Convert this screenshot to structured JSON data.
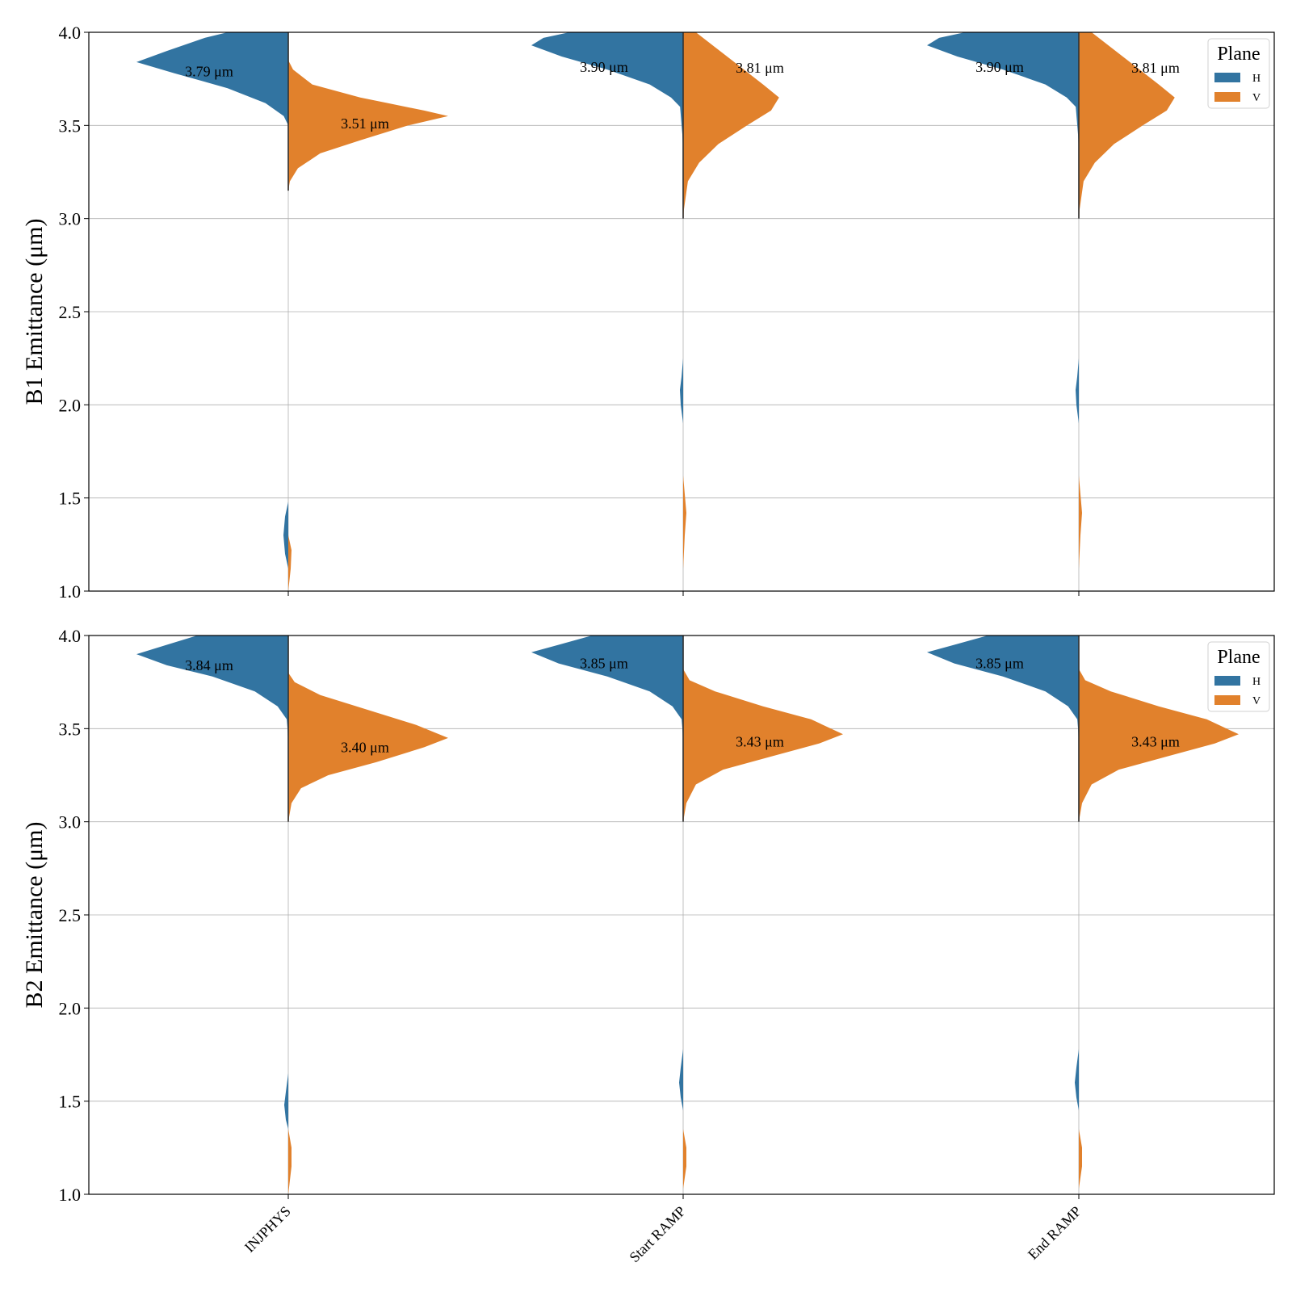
{
  "chart_data": [
    {
      "type": "violin",
      "panel": "top",
      "ylabel": "B1 Emittance (μm)",
      "ylim": [
        1.0,
        4.0
      ],
      "yticks": [
        "1.0",
        "1.5",
        "2.0",
        "2.5",
        "3.0",
        "3.5",
        "4.0"
      ],
      "grid": true,
      "split": true,
      "categories": [
        "INJPHYS",
        "Start RAMP",
        "End RAMP"
      ],
      "legend": {
        "title": "Plane",
        "position": "top-right",
        "entries": [
          {
            "name": "H",
            "color": "#3274a1"
          },
          {
            "name": "V",
            "color": "#e1812c"
          }
        ]
      },
      "series": [
        {
          "name": "H",
          "color": "#3274a1",
          "median_labels": [
            "3.79 μm",
            "3.90 μm",
            "3.90 μm"
          ],
          "median": [
            3.79,
            3.9,
            3.9
          ],
          "density_profile": [
            [
              [
                4.0,
                0.4
              ],
              [
                3.97,
                0.55
              ],
              [
                3.9,
                0.8
              ],
              [
                3.84,
                1.0
              ],
              [
                3.78,
                0.75
              ],
              [
                3.7,
                0.4
              ],
              [
                3.62,
                0.15
              ],
              [
                3.55,
                0.03
              ],
              [
                3.5,
                0.0
              ]
            ],
            [
              [
                4.0,
                0.75
              ],
              [
                3.97,
                0.92
              ],
              [
                3.93,
                1.0
              ],
              [
                3.87,
                0.8
              ],
              [
                3.8,
                0.5
              ],
              [
                3.72,
                0.22
              ],
              [
                3.65,
                0.08
              ],
              [
                3.6,
                0.02
              ],
              [
                3.4,
                0.0
              ]
            ],
            [
              [
                4.0,
                0.75
              ],
              [
                3.97,
                0.92
              ],
              [
                3.93,
                1.0
              ],
              [
                3.87,
                0.8
              ],
              [
                3.8,
                0.5
              ],
              [
                3.72,
                0.22
              ],
              [
                3.65,
                0.08
              ],
              [
                3.6,
                0.02
              ],
              [
                3.4,
                0.0
              ]
            ]
          ],
          "outlier_lobe": [
            [
              [
                1.48,
                0.0
              ],
              [
                1.4,
                0.004
              ],
              [
                1.3,
                0.006
              ],
              [
                1.2,
                0.004
              ],
              [
                1.12,
                0.0
              ]
            ],
            [
              [
                2.25,
                0.0
              ],
              [
                2.15,
                0.002
              ],
              [
                2.08,
                0.004
              ],
              [
                2.0,
                0.003
              ],
              [
                1.9,
                0.0
              ]
            ],
            [
              [
                2.25,
                0.0
              ],
              [
                2.15,
                0.002
              ],
              [
                2.08,
                0.004
              ],
              [
                2.0,
                0.003
              ],
              [
                1.9,
                0.0
              ]
            ]
          ]
        },
        {
          "name": "V",
          "color": "#e1812c",
          "median_labels": [
            "3.51 μm",
            "3.81 μm",
            "3.81 μm"
          ],
          "median": [
            3.51,
            3.81,
            3.81
          ],
          "density_profile": [
            [
              [
                3.85,
                0.0
              ],
              [
                3.8,
                0.03
              ],
              [
                3.72,
                0.15
              ],
              [
                3.65,
                0.45
              ],
              [
                3.58,
                0.85
              ],
              [
                3.55,
                1.0
              ],
              [
                3.5,
                0.75
              ],
              [
                3.42,
                0.45
              ],
              [
                3.35,
                0.2
              ],
              [
                3.27,
                0.06
              ],
              [
                3.2,
                0.01
              ],
              [
                3.15,
                0.0
              ]
            ],
            [
              [
                4.0,
                0.08
              ],
              [
                3.92,
                0.2
              ],
              [
                3.82,
                0.35
              ],
              [
                3.72,
                0.5
              ],
              [
                3.65,
                0.6
              ],
              [
                3.58,
                0.55
              ],
              [
                3.5,
                0.4
              ],
              [
                3.4,
                0.22
              ],
              [
                3.3,
                0.1
              ],
              [
                3.2,
                0.03
              ],
              [
                3.05,
                0.005
              ],
              [
                3.0,
                0.0
              ]
            ],
            [
              [
                4.0,
                0.08
              ],
              [
                3.92,
                0.2
              ],
              [
                3.82,
                0.35
              ],
              [
                3.72,
                0.5
              ],
              [
                3.65,
                0.6
              ],
              [
                3.58,
                0.55
              ],
              [
                3.5,
                0.4
              ],
              [
                3.4,
                0.22
              ],
              [
                3.3,
                0.1
              ],
              [
                3.2,
                0.03
              ],
              [
                3.05,
                0.005
              ],
              [
                3.0,
                0.0
              ]
            ]
          ],
          "outlier_lobe": [
            [
              [
                1.3,
                0.0
              ],
              [
                1.22,
                0.004
              ],
              [
                1.12,
                0.003
              ],
              [
                1.0,
                0.0
              ]
            ],
            [
              [
                1.62,
                0.0
              ],
              [
                1.52,
                0.002
              ],
              [
                1.42,
                0.004
              ],
              [
                1.3,
                0.002
              ],
              [
                1.12,
                0.0
              ]
            ],
            [
              [
                1.62,
                0.0
              ],
              [
                1.52,
                0.002
              ],
              [
                1.42,
                0.004
              ],
              [
                1.3,
                0.002
              ],
              [
                1.12,
                0.0
              ]
            ]
          ]
        }
      ]
    },
    {
      "type": "violin",
      "panel": "bottom",
      "ylabel": "B2 Emittance (μm)",
      "ylim": [
        1.0,
        4.0
      ],
      "yticks": [
        "1.0",
        "1.5",
        "2.0",
        "2.5",
        "3.0",
        "3.5",
        "4.0"
      ],
      "grid": true,
      "split": true,
      "categories": [
        "INJPHYS",
        "Start RAMP",
        "End RAMP"
      ],
      "legend": {
        "title": "Plane",
        "position": "top-right",
        "entries": [
          {
            "name": "H",
            "color": "#3274a1"
          },
          {
            "name": "V",
            "color": "#e1812c"
          }
        ]
      },
      "series": [
        {
          "name": "H",
          "color": "#3274a1",
          "median_labels": [
            "3.84 μm",
            "3.85 μm",
            "3.85 μm"
          ],
          "median": [
            3.84,
            3.85,
            3.85
          ],
          "density_profile": [
            [
              [
                4.0,
                0.6
              ],
              [
                3.95,
                0.8
              ],
              [
                3.9,
                1.0
              ],
              [
                3.84,
                0.8
              ],
              [
                3.78,
                0.5
              ],
              [
                3.7,
                0.22
              ],
              [
                3.62,
                0.07
              ],
              [
                3.55,
                0.01
              ],
              [
                3.45,
                0.0
              ]
            ],
            [
              [
                4.0,
                0.6
              ],
              [
                3.95,
                0.82
              ],
              [
                3.91,
                1.0
              ],
              [
                3.85,
                0.82
              ],
              [
                3.78,
                0.5
              ],
              [
                3.7,
                0.22
              ],
              [
                3.62,
                0.07
              ],
              [
                3.55,
                0.01
              ],
              [
                3.45,
                0.0
              ]
            ],
            [
              [
                4.0,
                0.6
              ],
              [
                3.95,
                0.82
              ],
              [
                3.91,
                1.0
              ],
              [
                3.85,
                0.82
              ],
              [
                3.78,
                0.5
              ],
              [
                3.7,
                0.22
              ],
              [
                3.62,
                0.07
              ],
              [
                3.55,
                0.01
              ],
              [
                3.45,
                0.0
              ]
            ]
          ],
          "outlier_lobe": [
            [
              [
                1.65,
                0.0
              ],
              [
                1.55,
                0.003
              ],
              [
                1.48,
                0.005
              ],
              [
                1.4,
                0.003
              ],
              [
                1.35,
                0.0
              ]
            ],
            [
              [
                1.78,
                0.0
              ],
              [
                1.68,
                0.003
              ],
              [
                1.6,
                0.005
              ],
              [
                1.52,
                0.003
              ],
              [
                1.45,
                0.0
              ]
            ],
            [
              [
                1.78,
                0.0
              ],
              [
                1.68,
                0.003
              ],
              [
                1.6,
                0.005
              ],
              [
                1.52,
                0.003
              ],
              [
                1.45,
                0.0
              ]
            ]
          ]
        },
        {
          "name": "V",
          "color": "#e1812c",
          "median_labels": [
            "3.40 μm",
            "3.43 μm",
            "3.43 μm"
          ],
          "median": [
            3.4,
            3.43,
            3.43
          ],
          "density_profile": [
            [
              [
                3.8,
                0.0
              ],
              [
                3.75,
                0.04
              ],
              [
                3.68,
                0.2
              ],
              [
                3.6,
                0.5
              ],
              [
                3.52,
                0.8
              ],
              [
                3.45,
                1.0
              ],
              [
                3.4,
                0.85
              ],
              [
                3.32,
                0.55
              ],
              [
                3.25,
                0.25
              ],
              [
                3.18,
                0.08
              ],
              [
                3.1,
                0.02
              ],
              [
                3.0,
                0.0
              ]
            ],
            [
              [
                3.82,
                0.0
              ],
              [
                3.76,
                0.04
              ],
              [
                3.7,
                0.2
              ],
              [
                3.62,
                0.5
              ],
              [
                3.55,
                0.8
              ],
              [
                3.47,
                1.0
              ],
              [
                3.42,
                0.85
              ],
              [
                3.35,
                0.55
              ],
              [
                3.28,
                0.25
              ],
              [
                3.2,
                0.08
              ],
              [
                3.1,
                0.02
              ],
              [
                3.0,
                0.0
              ]
            ],
            [
              [
                3.82,
                0.0
              ],
              [
                3.76,
                0.04
              ],
              [
                3.7,
                0.2
              ],
              [
                3.62,
                0.5
              ],
              [
                3.55,
                0.8
              ],
              [
                3.47,
                1.0
              ],
              [
                3.42,
                0.85
              ],
              [
                3.35,
                0.55
              ],
              [
                3.28,
                0.25
              ],
              [
                3.2,
                0.08
              ],
              [
                3.1,
                0.02
              ],
              [
                3.0,
                0.0
              ]
            ]
          ],
          "outlier_lobe": [
            [
              [
                1.35,
                0.0
              ],
              [
                1.25,
                0.004
              ],
              [
                1.15,
                0.004
              ],
              [
                1.0,
                0.0
              ]
            ],
            [
              [
                1.35,
                0.0
              ],
              [
                1.25,
                0.004
              ],
              [
                1.15,
                0.004
              ],
              [
                1.03,
                0.0
              ]
            ],
            [
              [
                1.35,
                0.0
              ],
              [
                1.25,
                0.004
              ],
              [
                1.15,
                0.004
              ],
              [
                1.03,
                0.0
              ]
            ]
          ]
        }
      ]
    }
  ]
}
